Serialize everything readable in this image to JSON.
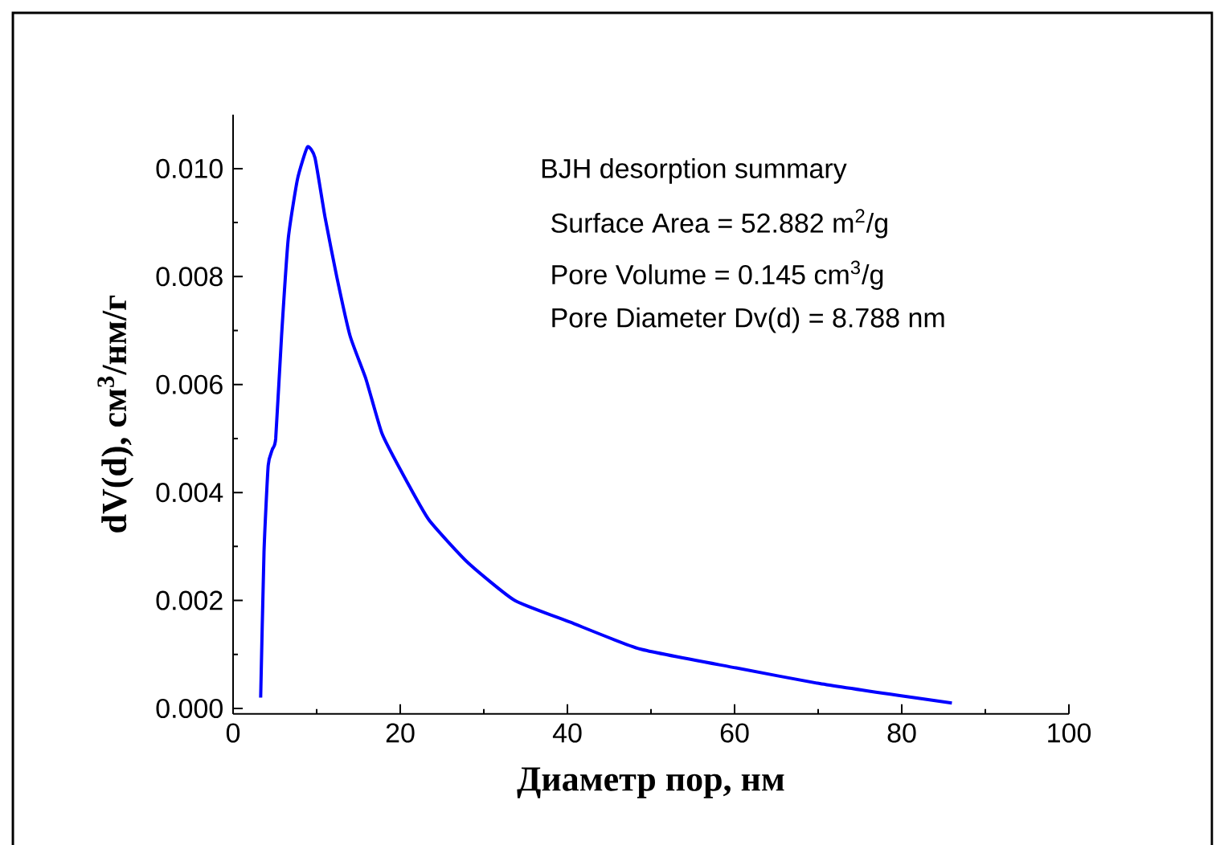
{
  "chart_data": {
    "type": "line",
    "xlabel": "Диаметр пор, нм",
    "ylabel": "dV(d), см$^{3}$/нм/г",
    "annotations": [
      "BJH desorption summary",
      "Surface Area = 52.882 m$^{2}$/g",
      "Pore Volume = 0.145 cm$^{3}$/g",
      "Pore Diameter Dv(d) = 8.788 nm"
    ],
    "xlim": [
      0,
      100
    ],
    "ylim": [
      -0.0001,
      0.011
    ],
    "xticks": [
      0,
      20,
      40,
      60,
      80,
      100
    ],
    "yticks": [
      {
        "value": 0,
        "label": "0.000"
      },
      {
        "value": 0.002,
        "label": "0.002"
      },
      {
        "value": 0.004,
        "label": "0.004"
      },
      {
        "value": 0.006,
        "label": "0.006"
      },
      {
        "value": 0.008,
        "label": "0.008"
      },
      {
        "value": 0.01,
        "label": "0.010"
      }
    ],
    "marker": "none",
    "line_style": "solid",
    "series": [
      {
        "color": "#0000ff",
        "x": [
          3.3,
          3.7,
          4.2,
          4.7,
          5.1,
          5.8,
          6.6,
          7.7,
          8.9,
          9.8,
          11.0,
          12.4,
          14.0,
          15.9,
          17.8,
          20.1,
          23.4,
          28.1,
          33.7,
          40.3,
          48.7,
          60.2,
          70.2,
          79.6,
          86.0
        ],
        "values": [
          0.0002,
          0.0029,
          0.0045,
          0.0048,
          0.005,
          0.0069,
          0.0087,
          0.0098,
          0.0104,
          0.0102,
          0.0091,
          0.008,
          0.0069,
          0.0061,
          0.0051,
          0.0044,
          0.0035,
          0.0027,
          0.002,
          0.0016,
          0.0011,
          0.00075,
          0.00046,
          0.00024,
          0.0001
        ]
      }
    ]
  }
}
